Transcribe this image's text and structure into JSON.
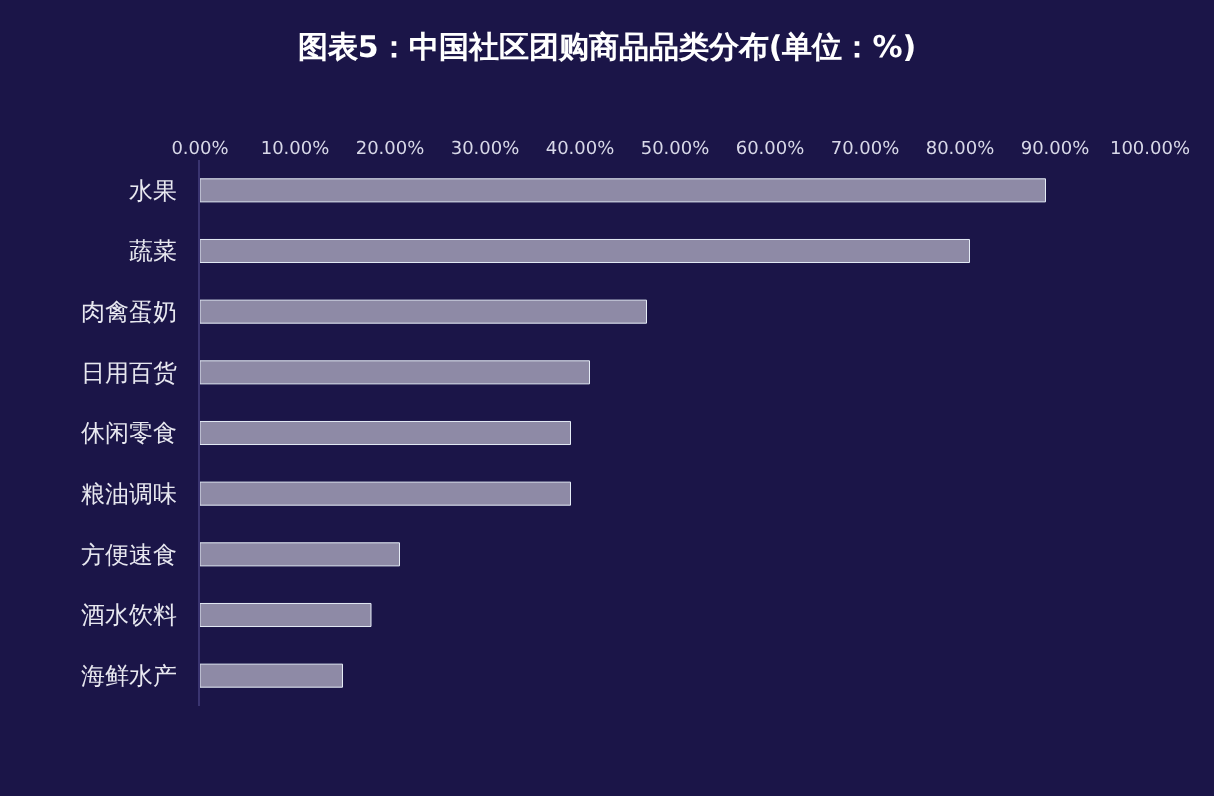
{
  "chart_data": {
    "type": "bar",
    "orientation": "horizontal",
    "title": "图表5：中国社区团购商品品类分布(单位：%)",
    "categories": [
      "水果",
      "蔬菜",
      "肉禽蛋奶",
      "日用百货",
      "休闲零食",
      "粮油调味",
      "方便速食",
      "酒水饮料",
      "海鲜水产"
    ],
    "values": [
      89,
      81,
      47,
      41,
      39,
      39,
      21,
      18,
      15
    ],
    "color": "#8e8aa6",
    "xlim": [
      0,
      100
    ],
    "xticks": [
      {
        "value": 0,
        "label": "0.00%"
      },
      {
        "value": 10,
        "label": "10.00%"
      },
      {
        "value": 20,
        "label": "20.00%"
      },
      {
        "value": 30,
        "label": "30.00%"
      },
      {
        "value": 40,
        "label": "40.00%"
      },
      {
        "value": 50,
        "label": "50.00%"
      },
      {
        "value": 60,
        "label": "60.00%"
      },
      {
        "value": 70,
        "label": "70.00%"
      },
      {
        "value": 80,
        "label": "80.00%"
      },
      {
        "value": 90,
        "label": "90.00%"
      },
      {
        "value": 100,
        "label": "100.00%"
      }
    ],
    "grid": false
  }
}
